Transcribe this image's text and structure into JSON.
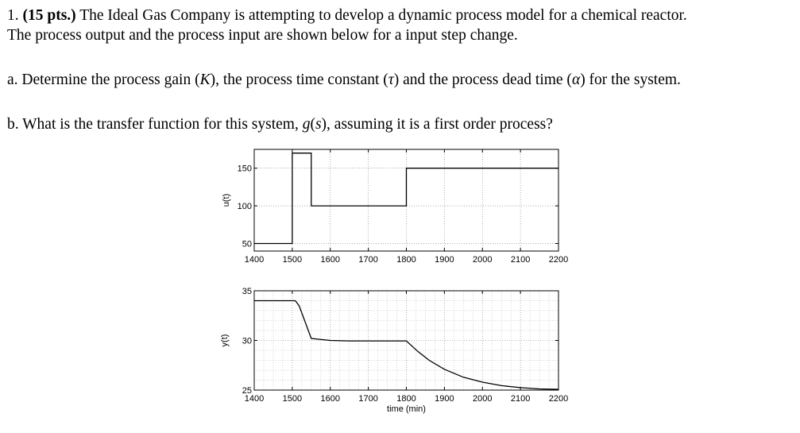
{
  "problem": {
    "number": "1.",
    "points": "(15 pts.)",
    "intro_line1": "The Ideal Gas Company is attempting to develop a dynamic process model for a chemical reactor.",
    "intro_line2": "The process output and the process input are shown below for a input step change.",
    "part_a": {
      "label": "a.",
      "before_K": "Determine the process gain (",
      "K": "K",
      "before_tau": "), the process time constant (",
      "tau": "τ",
      "before_alpha": ") and the process dead time (",
      "alpha": "α",
      "after_alpha": ") for the system."
    },
    "part_b": {
      "label": "b.",
      "before_g": "What is the transfer function for this system, ",
      "g": "g",
      "s_open": "(",
      "s": "s",
      "s_close": ")",
      "after_g": ", assuming it is a first order process?"
    }
  },
  "chart_data": [
    {
      "type": "line",
      "ylabel": "u(t)",
      "xlabel": "",
      "xlim": [
        1400,
        2200
      ],
      "ylim": [
        40,
        175
      ],
      "xticks": [
        "1400",
        "1500",
        "1600",
        "1700",
        "1800",
        "1900",
        "2000",
        "2100",
        "2200"
      ],
      "yticks": [
        "50",
        "100",
        "150"
      ],
      "x": [
        1400,
        1500,
        1500,
        1550,
        1550,
        1800,
        1800,
        2200
      ],
      "y": [
        50,
        50,
        170,
        170,
        100,
        100,
        150,
        150
      ],
      "grid": true
    },
    {
      "type": "line",
      "ylabel": "y(t)",
      "xlabel": "time (min)",
      "xlim": [
        1400,
        2200
      ],
      "ylim": [
        25,
        35
      ],
      "xticks": [
        "1400",
        "1500",
        "1600",
        "1700",
        "1800",
        "1900",
        "2000",
        "2100",
        "2200"
      ],
      "yticks": [
        "25",
        "30",
        "35"
      ],
      "x": [
        1400,
        1508,
        1518,
        1550,
        1600,
        1650,
        1700,
        1800,
        1830,
        1860,
        1900,
        1950,
        2000,
        2050,
        2100,
        2150,
        2200
      ],
      "y": [
        34,
        34,
        33.5,
        30.2,
        30.0,
        29.95,
        29.95,
        29.95,
        28.9,
        28.0,
        27.1,
        26.3,
        25.8,
        25.45,
        25.25,
        25.12,
        25.08
      ],
      "grid": true
    }
  ]
}
